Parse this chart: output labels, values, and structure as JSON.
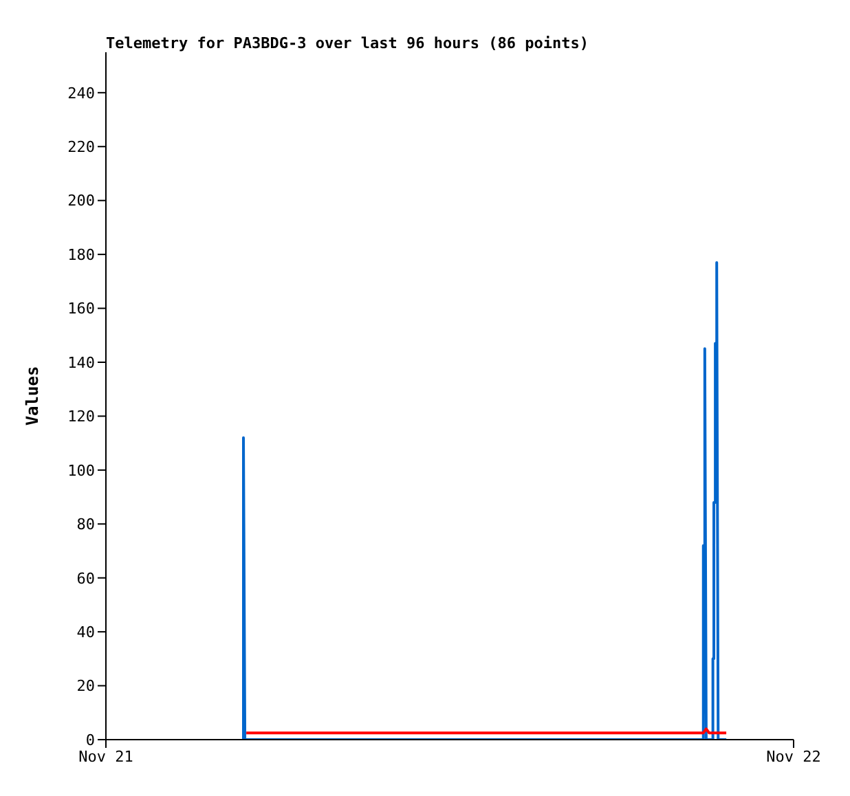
{
  "chart_data": {
    "type": "line",
    "title": "Telemetry for PA3BDG-3 over last 96 hours (86 points)",
    "ylabel": "Values",
    "xlim": [
      "--11-21",
      "--11-22"
    ],
    "xticks": [
      {
        "value": "--11-21",
        "label": "Nov 21"
      },
      {
        "value": "--11-22",
        "label": "Nov 22"
      }
    ],
    "ylim": [
      0,
      255
    ],
    "yticks": [
      0,
      20,
      40,
      60,
      80,
      100,
      120,
      140,
      160,
      180,
      200,
      220,
      240
    ],
    "marker": "none",
    "series": [
      {
        "color": "#0066cc",
        "x": [
          "--11-21T04:48",
          "--11-21T04:48",
          "--11-21T04:51",
          "--11-21T20:51",
          "--11-21T20:51",
          "--11-21T20:54",
          "--11-21T20:54",
          "--11-21T20:57",
          "--11-21T21:11",
          "--11-21T21:11",
          "--11-21T21:13",
          "--11-21T21:13",
          "--11-21T21:16",
          "--11-21T21:16",
          "--11-21T21:19",
          "--11-21T21:19",
          "--11-21T21:22",
          "--11-21T21:39"
        ],
        "values": [
          0,
          112,
          0,
          0,
          72,
          72,
          145,
          0,
          0,
          30,
          30,
          88,
          88,
          147,
          147,
          177,
          0,
          0
        ]
      },
      {
        "color": "#ff0000",
        "x": [
          "--11-21T04:54",
          "--11-21T20:51",
          "--11-21T20:57",
          "--11-21T21:03",
          "--11-21T21:39"
        ],
        "values": [
          2.5,
          2.5,
          4,
          2.5,
          2.5
        ]
      }
    ]
  }
}
